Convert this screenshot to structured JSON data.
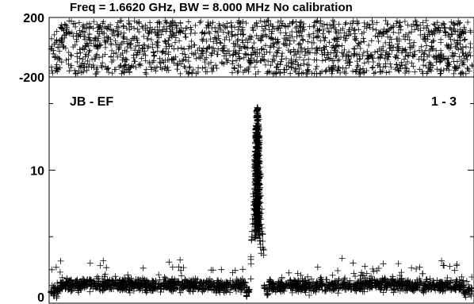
{
  "chart_data": [
    {
      "type": "scatter",
      "panel": "phase",
      "title": "Freq = 1.6620 GHz, BW = 8.000 MHz No calibration",
      "marker": "plus",
      "color": "#000000",
      "ylim": [
        -200,
        200
      ],
      "yticks": [
        {
          "value": 200,
          "label": "200"
        },
        {
          "value": -200,
          "label": "-200"
        }
      ],
      "band": {
        "min": -180,
        "max": 180,
        "distribution": "uniform",
        "points": 1600
      }
    },
    {
      "type": "scatter",
      "panel": "amplitude",
      "marker": "plus",
      "color": "#000000",
      "ylim": [
        0,
        17
      ],
      "yticks": [
        {
          "value": 0,
          "label": "0"
        },
        {
          "value": 10,
          "label": "10"
        }
      ],
      "minor_yticks": [
        5,
        15
      ],
      "labels": {
        "left": "JB - EF",
        "right": "1 - 3"
      },
      "profile": {
        "baseline": 1.3,
        "baseline_scatter": 0.8,
        "peak_height": 13.5,
        "peak_position": 0.49,
        "peak_width": 0.012,
        "shoulders": [
          {
            "position": 0.1,
            "height": 1.2
          },
          {
            "position": 0.25,
            "height": 1.2
          },
          {
            "position": 0.78,
            "height": 1.2
          },
          {
            "position": 0.95,
            "height": 1.0
          }
        ],
        "points": 2600
      }
    }
  ]
}
